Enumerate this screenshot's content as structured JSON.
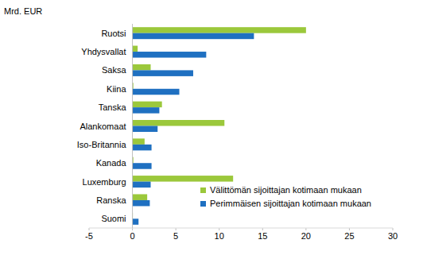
{
  "chart_data": {
    "type": "bar",
    "orientation": "horizontal",
    "y_label": "Mrd. EUR",
    "categories": [
      "Ruotsi",
      "Yhdysvallat",
      "Saksa",
      "Kiina",
      "Tanska",
      "Alankomaat",
      "Iso-Britannia",
      "Kanada",
      "Luxemburg",
      "Ranska",
      "Suomi"
    ],
    "series": [
      {
        "name": "Välittömän sijoittajan kotimaan mukaan",
        "color": "#9bc83b",
        "values": [
          20.0,
          0.6,
          2.1,
          0.1,
          3.4,
          10.6,
          1.4,
          0.1,
          11.6,
          1.7,
          0.0
        ]
      },
      {
        "name": "Perimmäisen sijoittajan kotimaan mukaan",
        "color": "#1f70c1",
        "values": [
          14.0,
          8.5,
          7.0,
          5.4,
          3.1,
          2.9,
          2.2,
          2.2,
          2.1,
          2.0,
          0.7
        ]
      }
    ],
    "xlim": [
      -5,
      30
    ],
    "xticks": [
      -5,
      0,
      5,
      10,
      15,
      20,
      25,
      30
    ],
    "grid": false,
    "legend": "lower right"
  }
}
